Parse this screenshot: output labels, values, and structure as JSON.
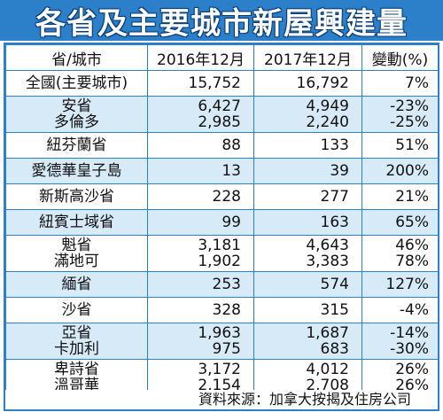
{
  "title": "各省及主要城市新屋興建量",
  "colors": {
    "accent": "#2c7fc9",
    "row_shade": "#d6eaf8"
  },
  "chart_data": {
    "type": "table",
    "columns": [
      "省/城市",
      "2016年12月",
      "2017年12月",
      "變動(%)"
    ],
    "rows": [
      {
        "name": "全國(主要城市)",
        "v2016": "15,752",
        "v2017": "16,792",
        "change": "7%"
      },
      {
        "name": "安省",
        "v2016": "6,427",
        "v2017": "4,949",
        "change": "-23%"
      },
      {
        "name": "多倫多",
        "v2016": "2,985",
        "v2017": "2,240",
        "change": "-25%"
      },
      {
        "name": "紐芬蘭省",
        "v2016": "88",
        "v2017": "133",
        "change": "51%"
      },
      {
        "name": "愛德華皇子島",
        "v2016": "13",
        "v2017": "39",
        "change": "200%"
      },
      {
        "name": "新斯高沙省",
        "v2016": "228",
        "v2017": "277",
        "change": "21%"
      },
      {
        "name": "紐賓士域省",
        "v2016": "99",
        "v2017": "163",
        "change": "65%"
      },
      {
        "name": "魁省",
        "v2016": "3,181",
        "v2017": "4,643",
        "change": "46%"
      },
      {
        "name": "滿地可",
        "v2016": "1,902",
        "v2017": "3,383",
        "change": "78%"
      },
      {
        "name": "緬省",
        "v2016": "253",
        "v2017": "574",
        "change": "127%"
      },
      {
        "name": "沙省",
        "v2016": "328",
        "v2017": "315",
        "change": "-4%"
      },
      {
        "name": "亞省",
        "v2016": "1,963",
        "v2017": "1,687",
        "change": "-14%"
      },
      {
        "name": "卡加利",
        "v2016": "975",
        "v2017": "683",
        "change": "-30%"
      },
      {
        "name": "卑詩省",
        "v2016": "3,172",
        "v2017": "4,012",
        "change": "26%"
      },
      {
        "name": "溫哥華",
        "v2016": "2,154",
        "v2017": "2,708",
        "change": "26%"
      }
    ]
  },
  "source": "資料來源：加拿大按揭及住房公司"
}
